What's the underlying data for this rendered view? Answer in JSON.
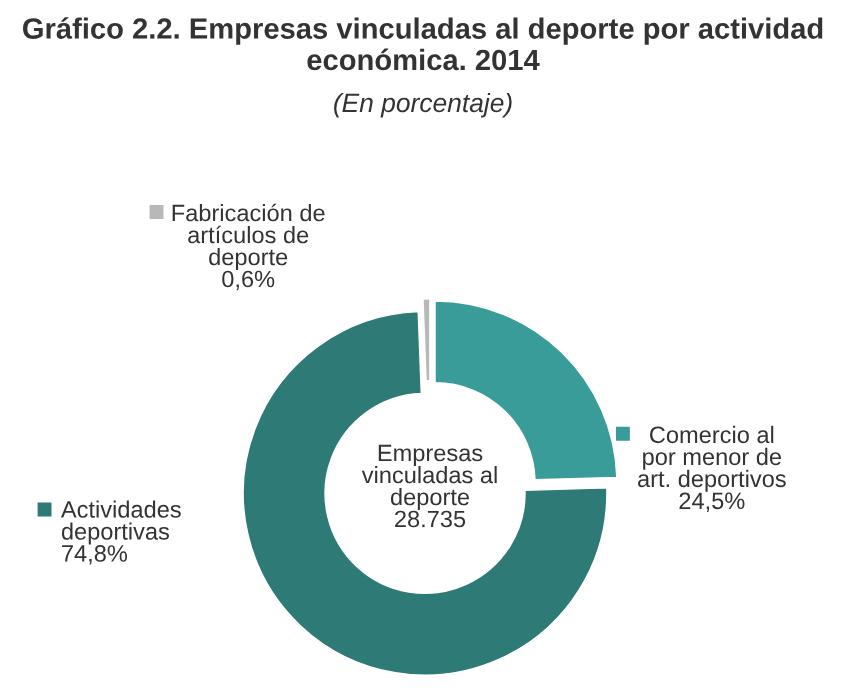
{
  "chart_data": {
    "type": "donut",
    "title": "Gráfico 2.2. Empresas vinculadas al deporte por actividad económica. 2014",
    "subtitle": "(En porcentaje)",
    "categories": [
      "Comercio al\npor menor de\nart. deportivos",
      "Actividades\ndeportivas",
      "Fabricación de\nartículos de\ndeporte"
    ],
    "values": [
      24.5,
      74.8,
      0.6
    ],
    "value_labels": [
      "24,5%",
      "74,8%",
      "0,6%"
    ],
    "colors": [
      "#3a9c98",
      "#2e7a76",
      "#b8b8b8"
    ],
    "legend": "right",
    "annotations": [
      "Empresas\nvinculadas al\ndeporte\n28.735"
    ]
  }
}
